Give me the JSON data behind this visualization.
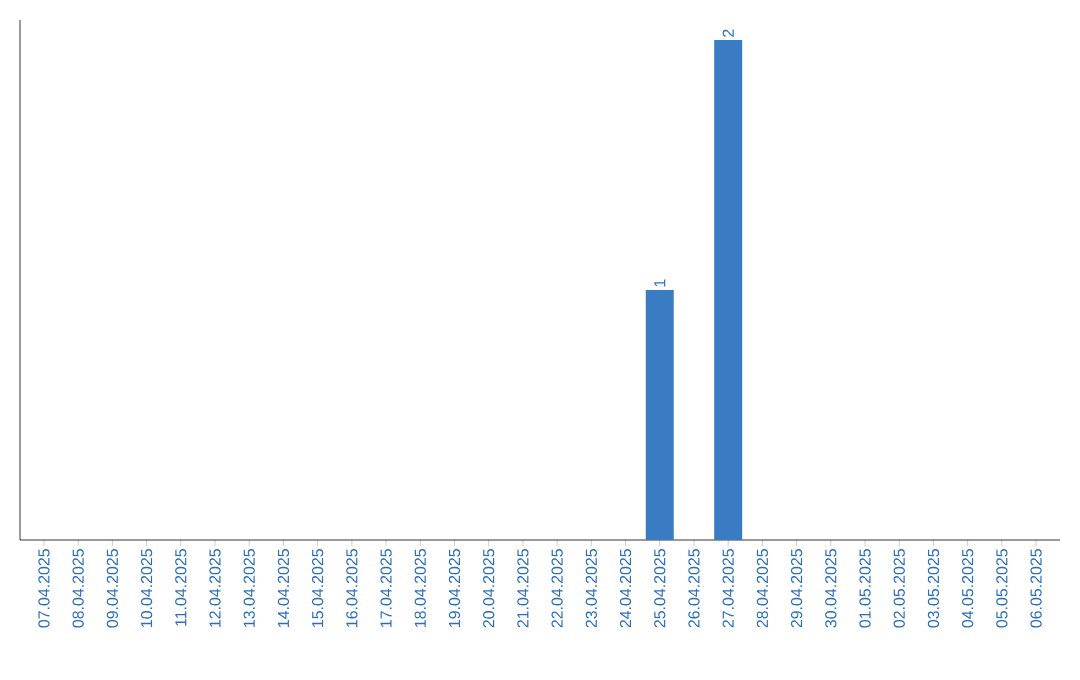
{
  "chart_data": {
    "type": "bar",
    "categories": [
      "07.04.2025",
      "08.04.2025",
      "09.04.2025",
      "10.04.2025",
      "11.04.2025",
      "12.04.2025",
      "13.04.2025",
      "14.04.2025",
      "15.04.2025",
      "16.04.2025",
      "17.04.2025",
      "18.04.2025",
      "19.04.2025",
      "20.04.2025",
      "21.04.2025",
      "22.04.2025",
      "23.04.2025",
      "24.04.2025",
      "25.04.2025",
      "26.04.2025",
      "27.04.2025",
      "28.04.2025",
      "29.04.2025",
      "30.04.2025",
      "01.05.2025",
      "02.05.2025",
      "03.05.2025",
      "04.05.2025",
      "05.05.2025",
      "06.05.2025"
    ],
    "values": [
      null,
      null,
      null,
      null,
      null,
      null,
      null,
      null,
      null,
      null,
      null,
      null,
      null,
      null,
      null,
      null,
      null,
      null,
      1,
      null,
      2,
      null,
      null,
      null,
      null,
      null,
      null,
      null,
      null,
      null
    ],
    "value_labels": [
      null,
      null,
      null,
      null,
      null,
      null,
      null,
      null,
      null,
      null,
      null,
      null,
      null,
      null,
      null,
      null,
      null,
      null,
      "1",
      null,
      "2",
      null,
      null,
      null,
      null,
      null,
      null,
      null,
      null,
      null
    ],
    "color": "#3a7cc4"
  }
}
